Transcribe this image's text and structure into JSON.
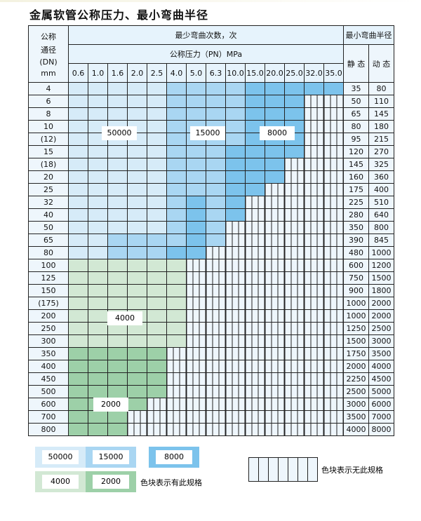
{
  "title": "金属软管公称压力、最小弯曲半径",
  "header": {
    "dn_label": [
      "公称",
      "通径",
      "(DN)",
      "mm"
    ],
    "cycles": "最少弯曲次数，次",
    "pressure": "公称压力（PN）MPa",
    "radius": "最小弯曲半径",
    "static": "静 态",
    "dynamic": "动 态"
  },
  "pressures": [
    "0.6",
    "1.0",
    "1.6",
    "2.0",
    "2.5",
    "4.0",
    "5.0",
    "6.3",
    "10.0",
    "15.0",
    "20.0",
    "25.0",
    "32.0",
    "35.0"
  ],
  "rows": [
    {
      "dn": "4",
      "static": "35",
      "dynamic": "80",
      "cells": "aaaaabbbbccccc"
    },
    {
      "dn": "6",
      "static": "50",
      "dynamic": "110",
      "cells": "aaaaabbbbcccxx"
    },
    {
      "dn": "8",
      "static": "65",
      "dynamic": "145",
      "cells": "aaaaabbbbcccxx"
    },
    {
      "dn": "10",
      "static": "80",
      "dynamic": "180",
      "cells": "aaaaabbbbcccxx"
    },
    {
      "dn": "(12)",
      "static": "95",
      "dynamic": "215",
      "cells": "aaaaabbbbcccxx"
    },
    {
      "dn": "15",
      "static": "120",
      "dynamic": "270",
      "cells": "aaaaabbbccccxx"
    },
    {
      "dn": "(18)",
      "static": "145",
      "dynamic": "325",
      "cells": "aaaaabbbcccxxx"
    },
    {
      "dn": "20",
      "static": "160",
      "dynamic": "360",
      "cells": "aaaaabbbcccxxx"
    },
    {
      "dn": "25",
      "static": "175",
      "dynamic": "400",
      "cells": "aaaaabbbccxxxx"
    },
    {
      "dn": "32",
      "static": "225",
      "dynamic": "510",
      "cells": "aaaaabcbcxxxxx"
    },
    {
      "dn": "40",
      "static": "280",
      "dynamic": "640",
      "cells": "aaaaabcbcxxxxx"
    },
    {
      "dn": "50",
      "static": "350",
      "dynamic": "800",
      "cells": "aaaaabcbxxxxxx"
    },
    {
      "dn": "65",
      "static": "390",
      "dynamic": "845",
      "cells": "aabbbbcbxxxxxx"
    },
    {
      "dn": "80",
      "static": "480",
      "dynamic": "1000",
      "cells": "aabbbccxxxxxxx"
    },
    {
      "dn": "100",
      "static": "600",
      "dynamic": "1200",
      "cells": "ggggggxxxxxxxx"
    },
    {
      "dn": "125",
      "static": "750",
      "dynamic": "1500",
      "cells": "ggggggxxxxxxxx"
    },
    {
      "dn": "150",
      "static": "900",
      "dynamic": "1800",
      "cells": "ggggggxxxxxxxx"
    },
    {
      "dn": "(175)",
      "static": "1000",
      "dynamic": "2000",
      "cells": "ggggggxxxxxxxx"
    },
    {
      "dn": "200",
      "static": "1000",
      "dynamic": "2000",
      "cells": "ggggggxxxxxxxx"
    },
    {
      "dn": "250",
      "static": "1250",
      "dynamic": "2500",
      "cells": "ggggggxxxxxxxx"
    },
    {
      "dn": "300",
      "static": "1500",
      "dynamic": "3000",
      "cells": "ggggggxxxxxxxx"
    },
    {
      "dn": "350",
      "static": "1750",
      "dynamic": "3500",
      "cells": "hhhhhxxxxxxxxx"
    },
    {
      "dn": "400",
      "static": "2000",
      "dynamic": "4000",
      "cells": "hhhhhxxxxxxxxx"
    },
    {
      "dn": "450",
      "static": "2250",
      "dynamic": "4500",
      "cells": "hhhhhxxxxxxxxx"
    },
    {
      "dn": "500",
      "static": "2500",
      "dynamic": "5000",
      "cells": "hhhhhxxxxxxxxx"
    },
    {
      "dn": "600",
      "static": "3000",
      "dynamic": "6000",
      "cells": "hhhhxxxxxxxxxx"
    },
    {
      "dn": "700",
      "static": "3500",
      "dynamic": "7000",
      "cells": "hhhxxxxxxxxxxx"
    },
    {
      "dn": "800",
      "static": "4000",
      "dynamic": "8000",
      "cells": "hhhxxxxxxxxxxx"
    }
  ],
  "regions": {
    "a": "50000",
    "b": "15000",
    "c": "8000",
    "g": "4000",
    "h": "2000"
  },
  "colors": {
    "a": "#d6ebf8",
    "b": "#a9d6f2",
    "c": "#7cc3ec",
    "g": "#d2e8d4",
    "h": "#9dd0a8",
    "none": "#eef6fc"
  },
  "legend": {
    "has_spec": "色块表示有此规格",
    "no_spec": "色块表示无此规格"
  }
}
